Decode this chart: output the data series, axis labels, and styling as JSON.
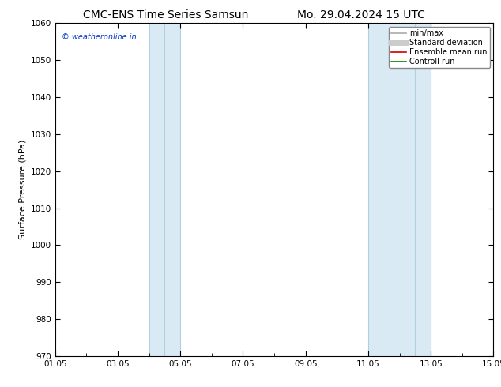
{
  "title_left": "CMC-ENS Time Series Samsun",
  "title_right": "Mo. 29.04.2024 15 UTC",
  "ylabel": "Surface Pressure (hPa)",
  "ylim": [
    970,
    1060
  ],
  "yticks": [
    970,
    980,
    990,
    1000,
    1010,
    1020,
    1030,
    1040,
    1050,
    1060
  ],
  "xlim_num": [
    0,
    14
  ],
  "xtick_labels": [
    "01.05",
    "03.05",
    "05.05",
    "07.05",
    "09.05",
    "11.05",
    "13.05",
    "15.05"
  ],
  "xtick_positions": [
    0,
    2,
    4,
    6,
    8,
    10,
    12,
    14
  ],
  "shaded_bands": [
    {
      "xmin": 3.0,
      "xmax": 4.0,
      "xdiv": 3.5
    },
    {
      "xmin": 10.0,
      "xmax": 12.0,
      "xdiv": 11.5
    }
  ],
  "shade_color": "#daeaf5",
  "band_line_color": "#b0cfe0",
  "watermark_text": "© weatheronline.in",
  "watermark_color": "#0033cc",
  "legend_entries": [
    {
      "label": "min/max",
      "color": "#aaaaaa",
      "lw": 1.2
    },
    {
      "label": "Standard deviation",
      "color": "#cccccc",
      "lw": 5
    },
    {
      "label": "Ensemble mean run",
      "color": "#cc0000",
      "lw": 1.2
    },
    {
      "label": "Controll run",
      "color": "#008800",
      "lw": 1.2
    }
  ],
  "background_color": "#ffffff",
  "title_fontsize": 10,
  "axis_fontsize": 8,
  "tick_fontsize": 7.5
}
